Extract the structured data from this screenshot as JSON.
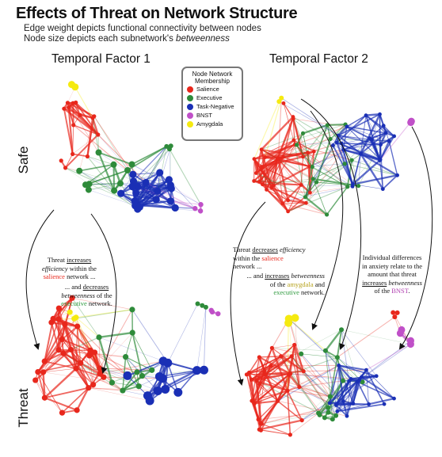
{
  "title": "Effects of Threat on Network Structure",
  "subtitle1": "Edge weight depicts functional connectivity between nodes",
  "subtitle2_pre": "Node size depicts each subnetwork's ",
  "subtitle2_em": "betweenness",
  "columns": [
    "Temporal Factor 1",
    "Temporal Factor 2"
  ],
  "rows": [
    "Safe",
    "Threat"
  ],
  "legend": {
    "title": "Node Network Membership",
    "items": [
      {
        "label": "Salience",
        "color": "#e8271c"
      },
      {
        "label": "Executive",
        "color": "#2e8b3a"
      },
      {
        "label": "Task-Negative",
        "color": "#1a2fb5"
      },
      {
        "label": "BNST",
        "color": "#c050c8"
      },
      {
        "label": "Amygdala",
        "color": "#f5ea10"
      }
    ]
  },
  "annotations": {
    "n1": {
      "a": "Threat ",
      "b": "increases",
      "c": "efficiency",
      "d": " within the",
      "e": "salience",
      "f": " network ..."
    },
    "n2": {
      "a": "... and ",
      "b": "decreases",
      "c": "betweenness",
      "d": " of the",
      "e": "executive",
      "f": " network."
    },
    "n3": {
      "a": "Threat ",
      "b": "decreases",
      "c": "efficiency",
      "d": "within the ",
      "e": "salience",
      "f": "network ..."
    },
    "n4": {
      "a": "... and ",
      "b": "increases",
      "c": "betweenness",
      "d": "of the ",
      "e": "amygdala",
      "f": " and",
      "g": "executive",
      "h": " network."
    },
    "n5": {
      "a": "Individual differences",
      "b": "in anxiety relate to the",
      "c": "amount that threat",
      "d": "increases",
      "e": "betweenness",
      "f": "of the ",
      "g": "BNST",
      "h": "."
    }
  }
}
